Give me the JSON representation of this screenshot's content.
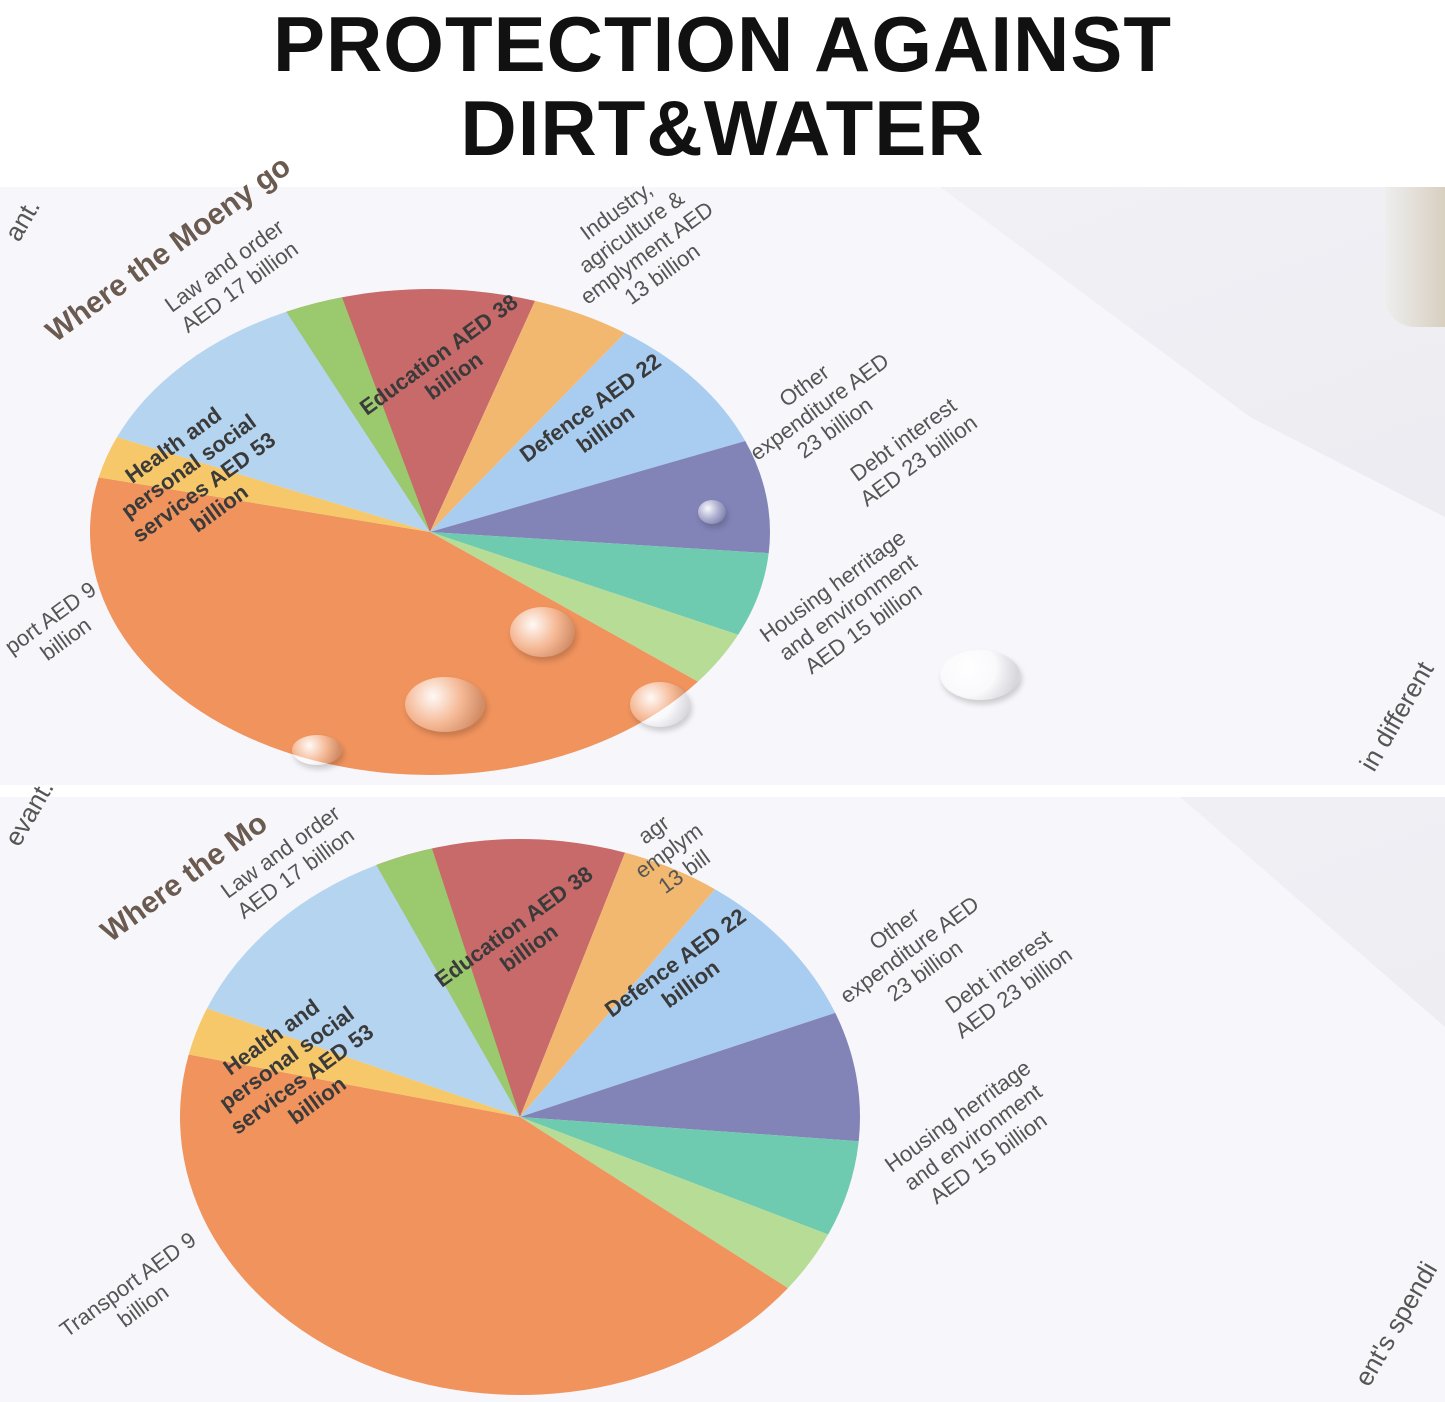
{
  "headline": {
    "line1": "PROTECTION AGAINST",
    "line2": "DIRT&WATER"
  },
  "colors": {
    "education": "#c86a6a",
    "industry": "#f2b870",
    "defence": "#a9cdf0",
    "other": "#8284b8",
    "debt": "#6fcbb0",
    "housing": "#b7dc95",
    "orange": "#f0935d",
    "transport": "#f6c86a",
    "health": "#b4d4f0",
    "law": "#9bc96e"
  },
  "top_photo": {
    "side_text": "ant.",
    "title": "Where the Moeny go",
    "labels": {
      "law": "Law and order\nAED 17 billion",
      "industry": "Industry,\nagriculture &\nemplyment AED\n13 billion",
      "education": "Education AED 38\nbillion",
      "defence": "Defence AED 22\nbillion",
      "other": "Other\nexpenditure AED\n23 billion",
      "debt": "Debt interest\nAED 23 billion",
      "housing": "Housing herritage\nand environment\nAED 15 billion",
      "health": "Health and\npersonal social\nservices AED 53\nbillion",
      "transport": "port AED 9\nbillion",
      "right_text": "in different"
    }
  },
  "bottom_photo": {
    "side_text": "evant.",
    "title": "Where the Mo",
    "labels": {
      "law": "Law and order\nAED 17 billion",
      "industry": "agr\nemplym\n13 bill",
      "education": "Education AED 38\nbillion",
      "defence": "Defence AED 22\nbillion",
      "other": "Other\nexpenditure AED\n23 billion",
      "debt": "Debt interest\nAED 23 billion",
      "housing": "Housing herritage\nand environment\nAED 15 billion",
      "health": "Health and\npersonal social\nservices AED 53\nbillion",
      "transport": "Transport AED 9\nbillion",
      "right_text": "ent's spendi"
    }
  }
}
